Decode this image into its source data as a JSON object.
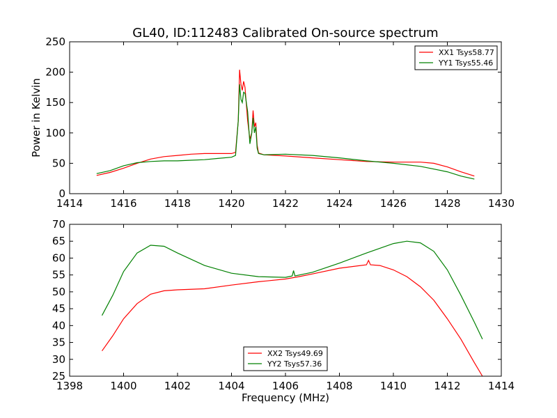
{
  "title": "GL40, ID:112483 Calibrated On-source spectrum",
  "chart_data": [
    {
      "type": "line",
      "title": "GL40, ID:112483 Calibrated On-source spectrum",
      "xlabel": "",
      "ylabel": "Power in Kelvin",
      "xlim": [
        1414,
        1430
      ],
      "ylim": [
        0,
        250
      ],
      "xticks": [
        1414,
        1416,
        1418,
        1420,
        1422,
        1424,
        1426,
        1428,
        1430
      ],
      "yticks": [
        0,
        50,
        100,
        150,
        200,
        250
      ],
      "grid": false,
      "legend_position": "top-right",
      "series": [
        {
          "name": "XX1 Tsys58.77",
          "color": "#ff0000",
          "points": [
            [
              1415.0,
              30
            ],
            [
              1415.5,
              35
            ],
            [
              1416.0,
              42
            ],
            [
              1416.5,
              50
            ],
            [
              1417.0,
              57
            ],
            [
              1417.5,
              61
            ],
            [
              1418.0,
              63
            ],
            [
              1418.5,
              65
            ],
            [
              1419.0,
              66
            ],
            [
              1419.5,
              66
            ],
            [
              1420.0,
              66
            ],
            [
              1420.15,
              68
            ],
            [
              1420.25,
              120
            ],
            [
              1420.3,
              204
            ],
            [
              1420.35,
              180
            ],
            [
              1420.4,
              170
            ],
            [
              1420.45,
              185
            ],
            [
              1420.5,
              175
            ],
            [
              1420.6,
              120
            ],
            [
              1420.68,
              90
            ],
            [
              1420.75,
              100
            ],
            [
              1420.8,
              137
            ],
            [
              1420.85,
              110
            ],
            [
              1420.9,
              117
            ],
            [
              1420.95,
              80
            ],
            [
              1421.0,
              67
            ],
            [
              1421.2,
              64
            ],
            [
              1422.0,
              62
            ],
            [
              1423.0,
              59
            ],
            [
              1424.0,
              56
            ],
            [
              1425.0,
              53
            ],
            [
              1426.0,
              52
            ],
            [
              1427.0,
              52
            ],
            [
              1427.5,
              50
            ],
            [
              1428.0,
              44
            ],
            [
              1428.5,
              36
            ],
            [
              1429.0,
              29
            ]
          ]
        },
        {
          "name": "YY1 Tsys55.46",
          "color": "#008000",
          "points": [
            [
              1415.0,
              33
            ],
            [
              1415.5,
              38
            ],
            [
              1416.0,
              46
            ],
            [
              1416.5,
              51
            ],
            [
              1417.0,
              53
            ],
            [
              1417.5,
              54
            ],
            [
              1418.0,
              54
            ],
            [
              1418.5,
              55
            ],
            [
              1419.0,
              56
            ],
            [
              1419.5,
              58
            ],
            [
              1420.0,
              60
            ],
            [
              1420.15,
              63
            ],
            [
              1420.25,
              120
            ],
            [
              1420.3,
              180
            ],
            [
              1420.35,
              155
            ],
            [
              1420.4,
              150
            ],
            [
              1420.45,
              167
            ],
            [
              1420.5,
              165
            ],
            [
              1420.6,
              135
            ],
            [
              1420.68,
              82
            ],
            [
              1420.75,
              100
            ],
            [
              1420.8,
              125
            ],
            [
              1420.85,
              100
            ],
            [
              1420.9,
              110
            ],
            [
              1420.95,
              75
            ],
            [
              1421.0,
              66
            ],
            [
              1421.2,
              64
            ],
            [
              1422.0,
              65
            ],
            [
              1423.0,
              63
            ],
            [
              1424.0,
              59
            ],
            [
              1425.0,
              54
            ],
            [
              1426.0,
              50
            ],
            [
              1427.0,
              45
            ],
            [
              1428.0,
              36
            ],
            [
              1428.5,
              29
            ],
            [
              1429.0,
              24
            ]
          ]
        }
      ]
    },
    {
      "type": "line",
      "title": "",
      "xlabel": "Frequency (MHz)",
      "ylabel": "",
      "xlim": [
        1398,
        1414
      ],
      "ylim": [
        25,
        70
      ],
      "xticks": [
        1398,
        1400,
        1402,
        1404,
        1406,
        1408,
        1410,
        1412,
        1414
      ],
      "yticks": [
        25,
        30,
        35,
        40,
        45,
        50,
        55,
        60,
        65,
        70
      ],
      "grid": false,
      "legend_position": "lower-center",
      "series": [
        {
          "name": "XX2 Tsys49.69",
          "color": "#ff0000",
          "points": [
            [
              1399.2,
              32.5
            ],
            [
              1399.6,
              37.0
            ],
            [
              1400.0,
              42.0
            ],
            [
              1400.5,
              46.5
            ],
            [
              1401.0,
              49.3
            ],
            [
              1401.5,
              50.3
            ],
            [
              1402.0,
              50.6
            ],
            [
              1403.0,
              50.9
            ],
            [
              1404.0,
              52.0
            ],
            [
              1405.0,
              53.0
            ],
            [
              1406.0,
              53.8
            ],
            [
              1406.5,
              54.5
            ],
            [
              1407.0,
              55.3
            ],
            [
              1408.0,
              57.0
            ],
            [
              1409.0,
              58.0
            ],
            [
              1409.08,
              59.3
            ],
            [
              1409.15,
              58.0
            ],
            [
              1409.5,
              57.8
            ],
            [
              1410.0,
              56.5
            ],
            [
              1410.5,
              54.5
            ],
            [
              1411.0,
              51.5
            ],
            [
              1411.5,
              47.5
            ],
            [
              1412.0,
              42.0
            ],
            [
              1412.5,
              36.0
            ],
            [
              1413.0,
              29.0
            ],
            [
              1413.3,
              25.0
            ]
          ]
        },
        {
          "name": "YY2 Tsys57.36",
          "color": "#008000",
          "points": [
            [
              1399.2,
              43.0
            ],
            [
              1399.6,
              49.0
            ],
            [
              1400.0,
              56.0
            ],
            [
              1400.5,
              61.5
            ],
            [
              1401.0,
              63.8
            ],
            [
              1401.5,
              63.5
            ],
            [
              1402.0,
              61.5
            ],
            [
              1403.0,
              57.8
            ],
            [
              1404.0,
              55.5
            ],
            [
              1405.0,
              54.5
            ],
            [
              1406.0,
              54.3
            ],
            [
              1406.25,
              54.7
            ],
            [
              1406.3,
              56.3
            ],
            [
              1406.35,
              54.7
            ],
            [
              1407.0,
              55.8
            ],
            [
              1408.0,
              58.5
            ],
            [
              1409.0,
              61.5
            ],
            [
              1410.0,
              64.3
            ],
            [
              1410.5,
              65.0
            ],
            [
              1411.0,
              64.5
            ],
            [
              1411.5,
              62.0
            ],
            [
              1412.0,
              56.5
            ],
            [
              1412.5,
              49.0
            ],
            [
              1413.0,
              41.0
            ],
            [
              1413.3,
              36.0
            ]
          ]
        }
      ]
    }
  ]
}
